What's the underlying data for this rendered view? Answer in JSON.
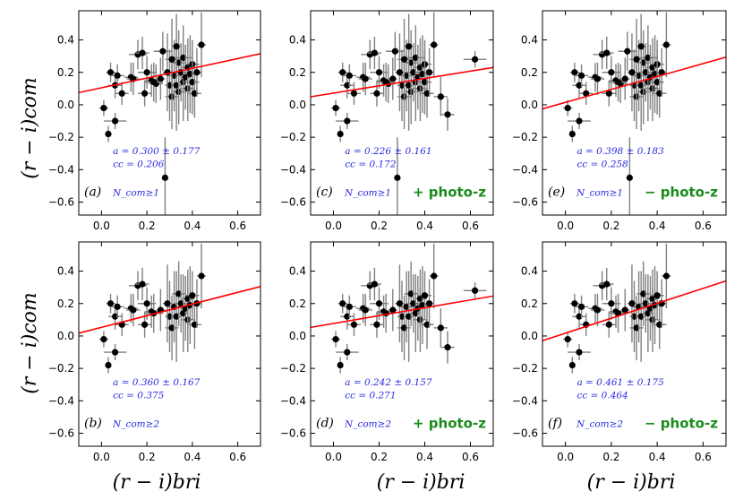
{
  "chart_data": [
    {
      "type": "scatter",
      "panel_label": "(a)",
      "selection": "N_com≥1",
      "photoz": "",
      "fit": {
        "a_text": "a = 0.300 ± 0.177",
        "cc_text": "cc = 0.206",
        "slope": 0.3,
        "intercept": 0.105
      },
      "xlim": [
        -0.1,
        0.7
      ],
      "ylim": [
        -0.68,
        0.58
      ],
      "xticks": [
        0.0,
        0.2,
        0.4,
        0.6
      ],
      "yticks": [
        -0.6,
        -0.4,
        -0.2,
        0.0,
        0.2,
        0.4
      ],
      "points": "A"
    },
    {
      "type": "scatter",
      "panel_label": "(c)",
      "selection": "N_com≥1",
      "photoz": "+ photo-z",
      "fit": {
        "a_text": "a = 0.226 ± 0.161",
        "cc_text": "cc = 0.172",
        "slope": 0.226,
        "intercept": 0.072
      },
      "xlim": [
        -0.1,
        0.7
      ],
      "ylim": [
        -0.68,
        0.58
      ],
      "xticks": [
        0.0,
        0.2,
        0.4,
        0.6
      ],
      "yticks": [
        -0.6,
        -0.4,
        -0.2,
        0.0,
        0.2,
        0.4
      ],
      "points": "C"
    },
    {
      "type": "scatter",
      "panel_label": "(e)",
      "selection": "N_com≥1",
      "photoz": "− photo-z",
      "fit": {
        "a_text": "a = 0.398 ± 0.183",
        "cc_text": "cc = 0.258",
        "slope": 0.398,
        "intercept": 0.015
      },
      "xlim": [
        -0.1,
        0.7
      ],
      "ylim": [
        -0.68,
        0.58
      ],
      "xticks": [
        0.0,
        0.2,
        0.4,
        0.6
      ],
      "yticks": [
        -0.6,
        -0.4,
        -0.2,
        0.0,
        0.2,
        0.4
      ],
      "points": "A"
    },
    {
      "type": "scatter",
      "panel_label": "(b)",
      "selection": "N_com≥2",
      "photoz": "",
      "fit": {
        "a_text": "a = 0.360 ± 0.167",
        "cc_text": "cc = 0.375",
        "slope": 0.36,
        "intercept": 0.053
      },
      "xlim": [
        -0.1,
        0.7
      ],
      "ylim": [
        -0.68,
        0.58
      ],
      "xticks": [
        0.0,
        0.2,
        0.4,
        0.6
      ],
      "yticks": [
        -0.6,
        -0.4,
        -0.2,
        0.0,
        0.2,
        0.4
      ],
      "points": "B"
    },
    {
      "type": "scatter",
      "panel_label": "(d)",
      "selection": "N_com≥2",
      "photoz": "+ photo-z",
      "fit": {
        "a_text": "a = 0.242 ± 0.157",
        "cc_text": "cc = 0.271",
        "slope": 0.242,
        "intercept": 0.077
      },
      "xlim": [
        -0.1,
        0.7
      ],
      "ylim": [
        -0.68,
        0.58
      ],
      "xticks": [
        0.0,
        0.2,
        0.4,
        0.6
      ],
      "yticks": [
        -0.6,
        -0.4,
        -0.2,
        0.0,
        0.2,
        0.4
      ],
      "points": "D"
    },
    {
      "type": "scatter",
      "panel_label": "(f)",
      "selection": "N_com≥2",
      "photoz": "− photo-z",
      "fit": {
        "a_text": "a = 0.461 ± 0.175",
        "cc_text": "cc = 0.464",
        "slope": 0.461,
        "intercept": 0.017
      },
      "xlim": [
        -0.1,
        0.7
      ],
      "ylim": [
        -0.68,
        0.58
      ],
      "xticks": [
        0.0,
        0.2,
        0.4,
        0.6
      ],
      "yticks": [
        -0.6,
        -0.4,
        -0.2,
        0.0,
        0.2,
        0.4
      ],
      "points": "B"
    }
  ],
  "point_sets": {
    "A": [
      [
        0.03,
        -0.18,
        0.01,
        0.05
      ],
      [
        0.01,
        -0.02,
        0.02,
        0.05
      ],
      [
        0.04,
        0.2,
        0.02,
        0.06
      ],
      [
        0.06,
        0.12,
        0.03,
        0.08
      ],
      [
        0.07,
        0.18,
        0.03,
        0.07
      ],
      [
        0.09,
        0.07,
        0.03,
        0.07
      ],
      [
        0.06,
        -0.1,
        0.05,
        0.05
      ],
      [
        0.13,
        0.17,
        0.03,
        0.09
      ],
      [
        0.14,
        0.16,
        0.03,
        0.1
      ],
      [
        0.16,
        0.31,
        0.04,
        0.09
      ],
      [
        0.18,
        0.32,
        0.03,
        0.1
      ],
      [
        0.19,
        0.07,
        0.03,
        0.08
      ],
      [
        0.2,
        0.2,
        0.04,
        0.1
      ],
      [
        0.22,
        0.15,
        0.03,
        0.1
      ],
      [
        0.24,
        0.13,
        0.03,
        0.12
      ],
      [
        0.26,
        0.16,
        0.02,
        0.13
      ],
      [
        0.27,
        0.33,
        0.04,
        0.12
      ],
      [
        0.28,
        -0.45,
        0.01,
        0.25
      ],
      [
        0.3,
        0.12,
        0.02,
        0.22
      ],
      [
        0.31,
        0.05,
        0.03,
        0.2
      ],
      [
        0.32,
        0.18,
        0.03,
        0.22
      ],
      [
        0.33,
        0.12,
        0.02,
        0.28
      ],
      [
        0.34,
        0.08,
        0.03,
        0.2
      ],
      [
        0.34,
        0.26,
        0.03,
        0.2
      ],
      [
        0.35,
        0.2,
        0.03,
        0.18
      ],
      [
        0.36,
        0.14,
        0.02,
        0.24
      ],
      [
        0.36,
        0.29,
        0.04,
        0.2
      ],
      [
        0.37,
        0.17,
        0.02,
        0.2
      ],
      [
        0.38,
        0.1,
        0.03,
        0.2
      ],
      [
        0.38,
        0.23,
        0.03,
        0.18
      ],
      [
        0.39,
        0.19,
        0.02,
        0.24
      ],
      [
        0.4,
        0.25,
        0.03,
        0.15
      ],
      [
        0.4,
        0.14,
        0.03,
        0.2
      ],
      [
        0.41,
        0.07,
        0.03,
        0.15
      ],
      [
        0.42,
        0.2,
        0.02,
        0.15
      ],
      [
        0.44,
        0.37,
        0.02,
        0.2
      ],
      [
        0.31,
        0.28,
        0.03,
        0.25
      ],
      [
        0.29,
        0.2,
        0.02,
        0.24
      ],
      [
        0.33,
        0.36,
        0.02,
        0.2
      ],
      [
        0.23,
        0.14,
        0.04,
        0.12
      ]
    ],
    "C": [
      [
        0.03,
        -0.18,
        0.01,
        0.05
      ],
      [
        0.01,
        -0.02,
        0.02,
        0.05
      ],
      [
        0.04,
        0.2,
        0.02,
        0.06
      ],
      [
        0.06,
        0.12,
        0.03,
        0.08
      ],
      [
        0.07,
        0.18,
        0.03,
        0.07
      ],
      [
        0.09,
        0.07,
        0.03,
        0.07
      ],
      [
        0.06,
        -0.1,
        0.05,
        0.05
      ],
      [
        0.13,
        0.17,
        0.03,
        0.09
      ],
      [
        0.14,
        0.16,
        0.03,
        0.1
      ],
      [
        0.16,
        0.31,
        0.04,
        0.09
      ],
      [
        0.18,
        0.32,
        0.03,
        0.1
      ],
      [
        0.19,
        0.07,
        0.03,
        0.08
      ],
      [
        0.2,
        0.2,
        0.04,
        0.1
      ],
      [
        0.22,
        0.15,
        0.03,
        0.1
      ],
      [
        0.24,
        0.13,
        0.03,
        0.12
      ],
      [
        0.26,
        0.16,
        0.02,
        0.13
      ],
      [
        0.27,
        0.33,
        0.04,
        0.12
      ],
      [
        0.28,
        -0.45,
        0.01,
        0.25
      ],
      [
        0.3,
        0.12,
        0.02,
        0.22
      ],
      [
        0.31,
        0.05,
        0.03,
        0.2
      ],
      [
        0.32,
        0.18,
        0.03,
        0.22
      ],
      [
        0.33,
        0.12,
        0.02,
        0.28
      ],
      [
        0.34,
        0.08,
        0.03,
        0.2
      ],
      [
        0.34,
        0.26,
        0.03,
        0.2
      ],
      [
        0.35,
        0.2,
        0.03,
        0.18
      ],
      [
        0.36,
        0.14,
        0.02,
        0.24
      ],
      [
        0.36,
        0.29,
        0.04,
        0.2
      ],
      [
        0.37,
        0.17,
        0.02,
        0.2
      ],
      [
        0.38,
        0.1,
        0.03,
        0.2
      ],
      [
        0.38,
        0.23,
        0.03,
        0.18
      ],
      [
        0.39,
        0.19,
        0.02,
        0.24
      ],
      [
        0.4,
        0.25,
        0.03,
        0.15
      ],
      [
        0.4,
        0.14,
        0.03,
        0.2
      ],
      [
        0.41,
        0.07,
        0.03,
        0.15
      ],
      [
        0.42,
        0.2,
        0.02,
        0.15
      ],
      [
        0.44,
        0.37,
        0.02,
        0.2
      ],
      [
        0.31,
        0.28,
        0.03,
        0.25
      ],
      [
        0.29,
        0.2,
        0.02,
        0.24
      ],
      [
        0.33,
        0.36,
        0.02,
        0.2
      ],
      [
        0.23,
        0.14,
        0.04,
        0.12
      ],
      [
        0.5,
        -0.06,
        0.03,
        0.1
      ],
      [
        0.62,
        0.28,
        0.05,
        0.05
      ],
      [
        0.47,
        0.05,
        0.03,
        0.12
      ]
    ],
    "B": [
      [
        0.03,
        -0.18,
        0.01,
        0.05
      ],
      [
        0.01,
        -0.02,
        0.02,
        0.05
      ],
      [
        0.04,
        0.2,
        0.02,
        0.06
      ],
      [
        0.06,
        0.12,
        0.03,
        0.08
      ],
      [
        0.07,
        0.18,
        0.03,
        0.07
      ],
      [
        0.09,
        0.07,
        0.03,
        0.07
      ],
      [
        0.06,
        -0.1,
        0.05,
        0.05
      ],
      [
        0.13,
        0.17,
        0.03,
        0.09
      ],
      [
        0.14,
        0.16,
        0.03,
        0.1
      ],
      [
        0.16,
        0.31,
        0.04,
        0.09
      ],
      [
        0.18,
        0.32,
        0.03,
        0.1
      ],
      [
        0.19,
        0.07,
        0.03,
        0.08
      ],
      [
        0.2,
        0.2,
        0.04,
        0.1
      ],
      [
        0.22,
        0.15,
        0.03,
        0.1
      ],
      [
        0.26,
        0.16,
        0.02,
        0.13
      ],
      [
        0.3,
        0.12,
        0.02,
        0.22
      ],
      [
        0.31,
        0.05,
        0.03,
        0.2
      ],
      [
        0.32,
        0.18,
        0.03,
        0.22
      ],
      [
        0.33,
        0.12,
        0.02,
        0.28
      ],
      [
        0.34,
        0.26,
        0.03,
        0.2
      ],
      [
        0.35,
        0.2,
        0.03,
        0.18
      ],
      [
        0.36,
        0.14,
        0.02,
        0.24
      ],
      [
        0.37,
        0.17,
        0.02,
        0.2
      ],
      [
        0.38,
        0.1,
        0.03,
        0.2
      ],
      [
        0.38,
        0.23,
        0.03,
        0.18
      ],
      [
        0.39,
        0.19,
        0.02,
        0.24
      ],
      [
        0.4,
        0.25,
        0.03,
        0.15
      ],
      [
        0.41,
        0.07,
        0.03,
        0.15
      ],
      [
        0.42,
        0.2,
        0.02,
        0.15
      ],
      [
        0.44,
        0.37,
        0.02,
        0.2
      ],
      [
        0.29,
        0.2,
        0.02,
        0.24
      ],
      [
        0.23,
        0.14,
        0.04,
        0.12
      ]
    ],
    "D": [
      [
        0.03,
        -0.18,
        0.01,
        0.05
      ],
      [
        0.01,
        -0.02,
        0.02,
        0.05
      ],
      [
        0.04,
        0.2,
        0.02,
        0.06
      ],
      [
        0.06,
        0.12,
        0.03,
        0.08
      ],
      [
        0.07,
        0.18,
        0.03,
        0.07
      ],
      [
        0.09,
        0.07,
        0.03,
        0.07
      ],
      [
        0.06,
        -0.1,
        0.05,
        0.05
      ],
      [
        0.13,
        0.17,
        0.03,
        0.09
      ],
      [
        0.14,
        0.16,
        0.03,
        0.1
      ],
      [
        0.16,
        0.31,
        0.04,
        0.09
      ],
      [
        0.18,
        0.32,
        0.03,
        0.1
      ],
      [
        0.19,
        0.07,
        0.03,
        0.08
      ],
      [
        0.2,
        0.2,
        0.04,
        0.1
      ],
      [
        0.22,
        0.15,
        0.03,
        0.1
      ],
      [
        0.26,
        0.16,
        0.02,
        0.13
      ],
      [
        0.3,
        0.12,
        0.02,
        0.22
      ],
      [
        0.31,
        0.05,
        0.03,
        0.2
      ],
      [
        0.32,
        0.18,
        0.03,
        0.22
      ],
      [
        0.33,
        0.12,
        0.02,
        0.28
      ],
      [
        0.34,
        0.26,
        0.03,
        0.2
      ],
      [
        0.35,
        0.2,
        0.03,
        0.18
      ],
      [
        0.36,
        0.14,
        0.02,
        0.24
      ],
      [
        0.37,
        0.17,
        0.02,
        0.2
      ],
      [
        0.38,
        0.1,
        0.03,
        0.2
      ],
      [
        0.38,
        0.23,
        0.03,
        0.18
      ],
      [
        0.39,
        0.19,
        0.02,
        0.24
      ],
      [
        0.4,
        0.25,
        0.03,
        0.15
      ],
      [
        0.41,
        0.07,
        0.03,
        0.15
      ],
      [
        0.42,
        0.2,
        0.02,
        0.15
      ],
      [
        0.44,
        0.37,
        0.02,
        0.2
      ],
      [
        0.29,
        0.2,
        0.02,
        0.24
      ],
      [
        0.23,
        0.14,
        0.04,
        0.12
      ],
      [
        0.5,
        -0.07,
        0.03,
        0.1
      ],
      [
        0.62,
        0.28,
        0.05,
        0.05
      ],
      [
        0.47,
        0.05,
        0.03,
        0.12
      ]
    ]
  },
  "axes": {
    "ylabel": "(r − i)com",
    "xlabel": "(r − i)bri"
  },
  "colors": {
    "fit": "#ff0000",
    "stat": "#2a2adf",
    "photoz": "#1a8c1a",
    "errbar": "#808080"
  }
}
